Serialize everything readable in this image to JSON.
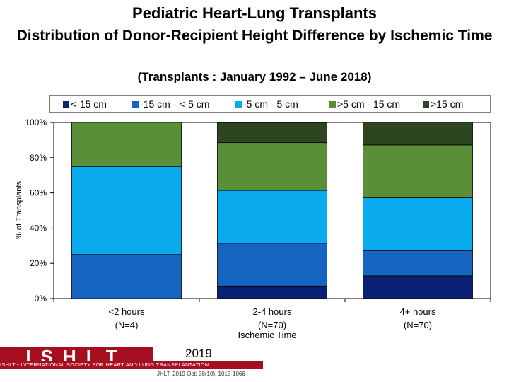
{
  "chart_data": {
    "type": "bar",
    "stacked": true,
    "title": "Pediatric Heart-Lung Transplants",
    "subtitle": "Distribution of Donor-Recipient Height Difference by Ischemic Time",
    "period": "(Transplants : January 1992 – June 2018)",
    "xlabel": "Ischemic Time",
    "ylabel": "% of Transplants",
    "ylim": [
      0,
      100
    ],
    "yticks": [
      "0%",
      "20%",
      "40%",
      "60%",
      "80%",
      "100%"
    ],
    "legend_position": "top",
    "categories": [
      {
        "name": "<2 hours",
        "n": "(N=4)"
      },
      {
        "name": "2-4 hours",
        "n": "(N=70)"
      },
      {
        "name": "4+ hours",
        "n": "(N=70)"
      }
    ],
    "series": [
      {
        "name": "<-15 cm",
        "color": "#0a2073",
        "values": [
          0,
          7.1,
          12.9
        ]
      },
      {
        "name": "-15 cm - <-5 cm",
        "color": "#1565c0",
        "values": [
          25,
          24.3,
          14.3
        ]
      },
      {
        "name": "-5 cm - 5 cm",
        "color": "#0aaaee",
        "values": [
          50,
          30,
          30
        ]
      },
      {
        "name": ">5 cm - 15 cm",
        "color": "#5a8f3a",
        "values": [
          25,
          27.1,
          30
        ]
      },
      {
        "name": ">15 cm",
        "color": "#2d4520",
        "values": [
          0,
          11.4,
          12.9
        ]
      }
    ]
  },
  "footer": {
    "logo_text": "ISHLT",
    "org_text": "ISHLT • INTERNATIONAL SOCIETY FOR HEART AND LUNG TRANSPLANTATION",
    "year": "2019",
    "citation": "JHLT. 2019 Oct; 38(10): 1015-1066"
  }
}
